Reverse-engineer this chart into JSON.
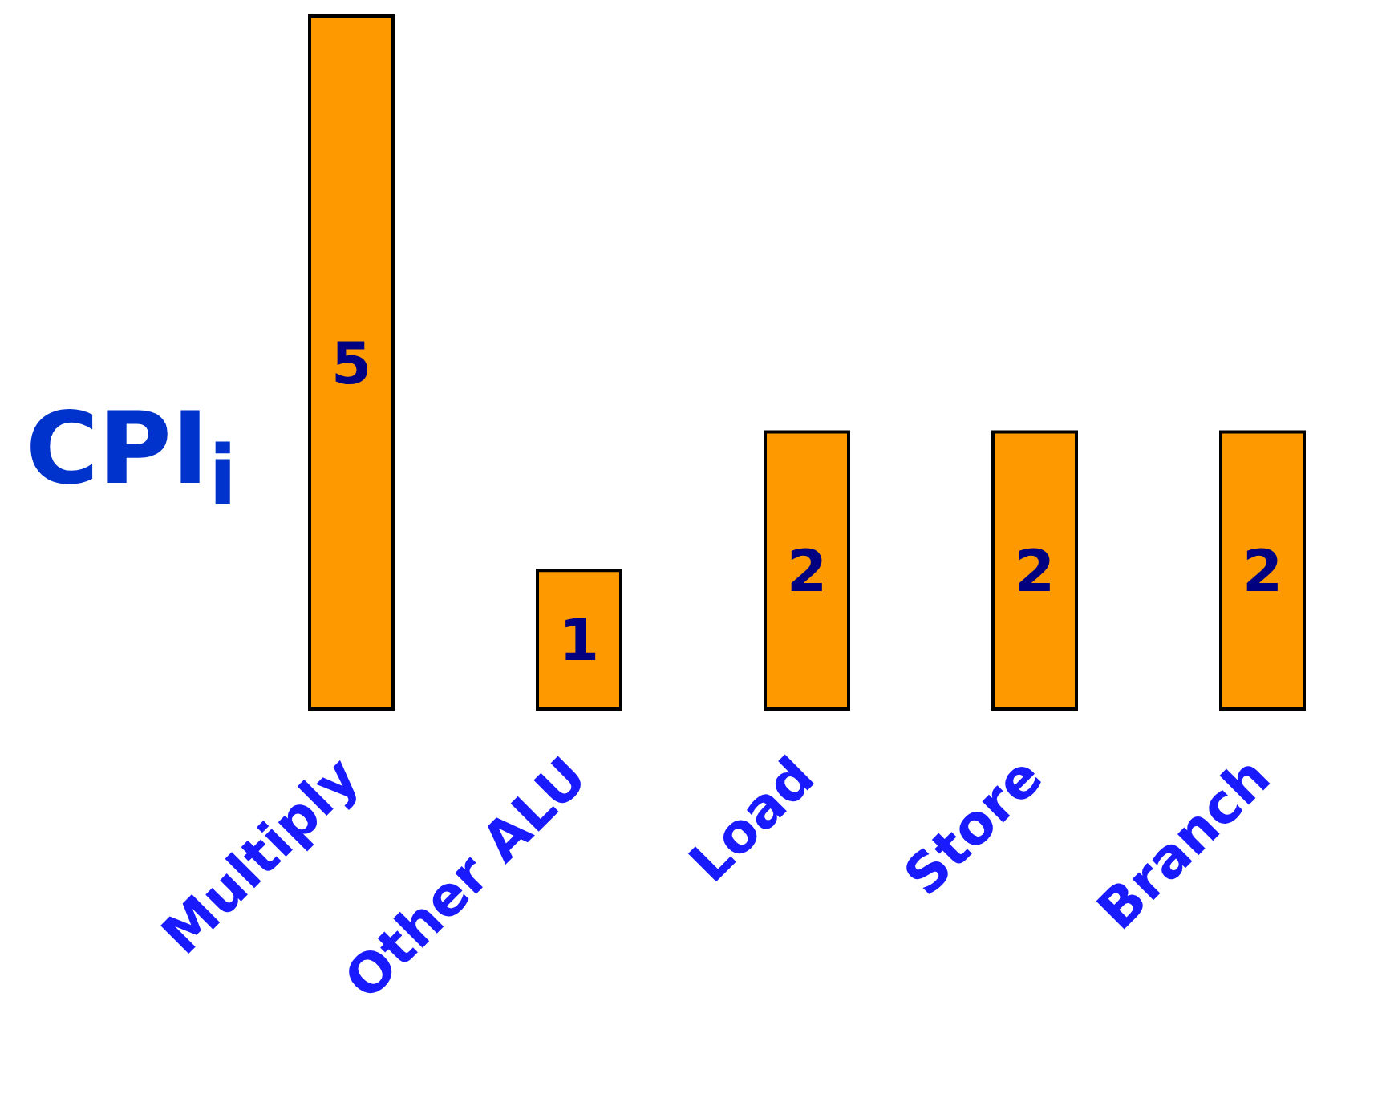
{
  "chart_data": {
    "type": "bar",
    "ylabel": "CPI$_{i}$",
    "categories": [
      "Multiply",
      "Other ALU",
      "Load",
      "Store",
      "Branch"
    ],
    "values": [
      5,
      1,
      2,
      2,
      2
    ],
    "color": "#ff9900",
    "data_labels": true,
    "grid": false,
    "legend": false
  }
}
